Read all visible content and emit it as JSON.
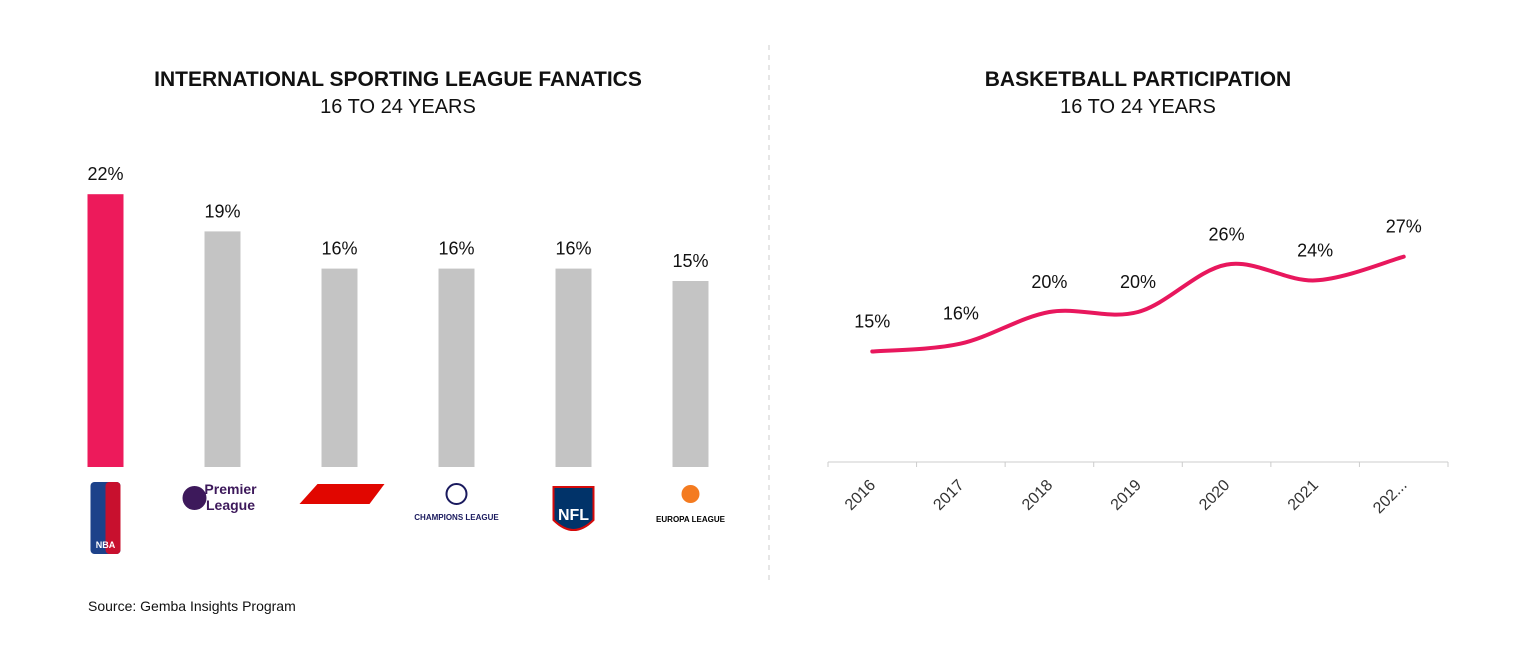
{
  "chart_data": [
    {
      "type": "bar",
      "title": "INTERNATIONAL SPORTING LEAGUE FANATICS",
      "subtitle": "16 TO 24 YEARS",
      "categories": [
        "NBA",
        "Premier League",
        null,
        "CHAMPIONS LEAGUE",
        "NFL",
        "EUROPA LEAGUE"
      ],
      "values": [
        22,
        19,
        16,
        16,
        16,
        15
      ],
      "value_labels": [
        "22%",
        "19%",
        "16%",
        "16%",
        "16%",
        "15%"
      ],
      "colors": [
        "#ed1a5b",
        "#c4c4c4",
        "#c4c4c4",
        "#c4c4c4",
        "#c4c4c4",
        "#c4c4c4"
      ]
    },
    {
      "type": "line",
      "title": "BASKETBALL PARTICIPATION",
      "subtitle": "16 TO 24 YEARS",
      "categories": [
        "2016",
        "2017",
        "2018",
        "2019",
        "2020",
        "2021",
        "202..."
      ],
      "values": [
        15,
        16,
        20,
        20,
        26,
        24,
        27
      ],
      "value_labels": [
        "15%",
        "16%",
        "20%",
        "20%",
        "26%",
        "24%",
        "27%"
      ],
      "color": "#e8175d"
    }
  ],
  "source": "Source: Gemba Insights Program"
}
